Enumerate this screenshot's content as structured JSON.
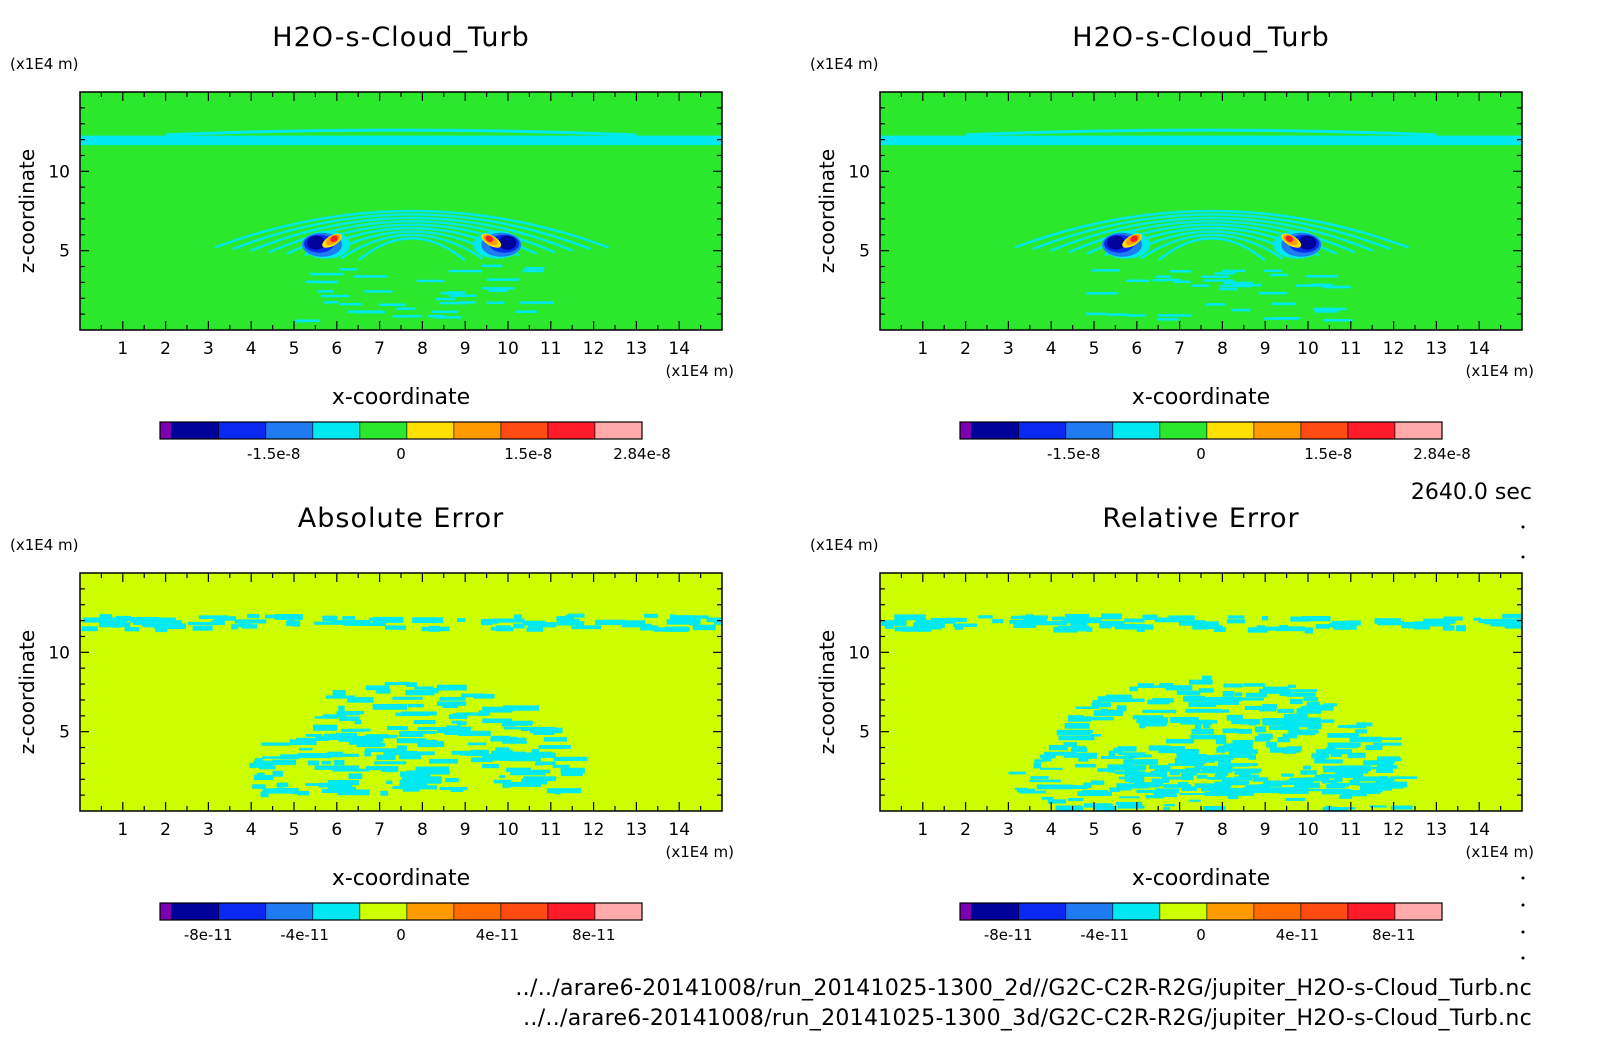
{
  "chart_data": [
    {
      "type": "heatmap",
      "title": "H2O-s-Cloud_Turb",
      "xlabel": "x-coordinate",
      "ylabel": "z-coordinate",
      "x_unit": "(x1E4 m)",
      "y_unit": "(x1E4 m)",
      "xlim": [
        0,
        15
      ],
      "ylim": [
        0,
        15
      ],
      "x_ticks": [
        1,
        2,
        3,
        4,
        5,
        6,
        7,
        8,
        9,
        10,
        11,
        12,
        13,
        14
      ],
      "y_ticks": [
        5,
        10
      ],
      "colorbar": {
        "colors": [
          "#7a00b0",
          "#00009a",
          "#0a28f0",
          "#1e7cf0",
          "#00e8f0",
          "#2ce82c",
          "#ffe000",
          "#ff9a00",
          "#ff4a14",
          "#ff1a2a",
          "#ffaaaa"
        ],
        "tick_labels": [
          "-1.5e-8",
          "0",
          "1.5e-8",
          "2.84e-8"
        ],
        "tick_positions": [
          -1.5e-08,
          0,
          1.5e-08,
          2.84e-08
        ],
        "range": [
          -2.84e-08,
          2.84e-08
        ]
      },
      "field": "plume"
    },
    {
      "type": "heatmap",
      "title": "H2O-s-Cloud_Turb",
      "xlabel": "x-coordinate",
      "ylabel": "z-coordinate",
      "x_unit": "(x1E4 m)",
      "y_unit": "(x1E4 m)",
      "xlim": [
        0,
        15
      ],
      "ylim": [
        0,
        15
      ],
      "x_ticks": [
        1,
        2,
        3,
        4,
        5,
        6,
        7,
        8,
        9,
        10,
        11,
        12,
        13,
        14
      ],
      "y_ticks": [
        5,
        10
      ],
      "colorbar": {
        "colors": [
          "#7a00b0",
          "#00009a",
          "#0a28f0",
          "#1e7cf0",
          "#00e8f0",
          "#2ce82c",
          "#ffe000",
          "#ff9a00",
          "#ff4a14",
          "#ff1a2a",
          "#ffaaaa"
        ],
        "tick_labels": [
          "-1.5e-8",
          "0",
          "1.5e-8",
          "2.84e-8"
        ],
        "tick_positions": [
          -1.5e-08,
          0,
          1.5e-08,
          2.84e-08
        ],
        "range": [
          -2.84e-08,
          2.84e-08
        ]
      },
      "field": "plume"
    },
    {
      "type": "heatmap",
      "title": "Absolute Error",
      "xlabel": "x-coordinate",
      "ylabel": "z-coordinate",
      "x_unit": "(x1E4 m)",
      "y_unit": "(x1E4 m)",
      "xlim": [
        0,
        15
      ],
      "ylim": [
        0,
        15
      ],
      "x_ticks": [
        1,
        2,
        3,
        4,
        5,
        6,
        7,
        8,
        9,
        10,
        11,
        12,
        13,
        14
      ],
      "y_ticks": [
        5,
        10
      ],
      "colorbar": {
        "colors": [
          "#7a00b0",
          "#00009a",
          "#0a28f0",
          "#1e7cf0",
          "#00e8f0",
          "#ccff00",
          "#ff9a00",
          "#ff6a00",
          "#ff4a14",
          "#ff1a2a",
          "#ffaaaa"
        ],
        "tick_labels": [
          "-8e-11",
          "-4e-11",
          "0",
          "4e-11",
          "8e-11"
        ],
        "tick_positions": [
          -8e-11,
          -4e-11,
          0,
          4e-11,
          8e-11
        ],
        "range": [
          -1e-10,
          1e-10
        ]
      },
      "field": "error-abs"
    },
    {
      "type": "heatmap",
      "title": "Relative Error",
      "xlabel": "x-coordinate",
      "ylabel": "z-coordinate",
      "x_unit": "(x1E4 m)",
      "y_unit": "(x1E4 m)",
      "xlim": [
        0,
        15
      ],
      "ylim": [
        0,
        15
      ],
      "x_ticks": [
        1,
        2,
        3,
        4,
        5,
        6,
        7,
        8,
        9,
        10,
        11,
        12,
        13,
        14
      ],
      "y_ticks": [
        5,
        10
      ],
      "colorbar": {
        "colors": [
          "#7a00b0",
          "#00009a",
          "#0a28f0",
          "#1e7cf0",
          "#00e8f0",
          "#ccff00",
          "#ff9a00",
          "#ff6a00",
          "#ff4a14",
          "#ff1a2a",
          "#ffaaaa"
        ],
        "tick_labels": [
          "-8e-11",
          "-4e-11",
          "0",
          "4e-11",
          "8e-11"
        ],
        "tick_positions": [
          -8e-11,
          -4e-11,
          0,
          4e-11,
          8e-11
        ],
        "range": [
          -1e-10,
          1e-10
        ]
      },
      "field": "error-rel"
    }
  ],
  "time_label": "2640.0 sec",
  "footer": {
    "line1": "../../arare6-20141008/run_20141025-1300_2d//G2C-C2R-R2G/jupiter_H2O-s-Cloud_Turb.nc",
    "line2": "../../arare6-20141008/run_20141025-1300_3d/G2C-C2R-R2G/jupiter_H2O-s-Cloud_Turb.nc"
  }
}
